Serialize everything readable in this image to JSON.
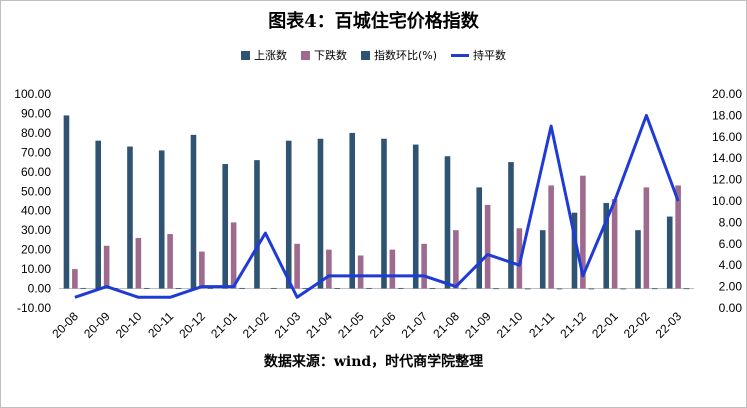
{
  "chart_data": {
    "type": "bar",
    "title": "图表4：百城住宅价格指数",
    "categories": [
      "20-08",
      "20-09",
      "20-10",
      "20-11",
      "20-12",
      "21-01",
      "21-02",
      "21-03",
      "21-04",
      "21-05",
      "21-06",
      "21-07",
      "21-08",
      "21-09",
      "21-10",
      "21-11",
      "21-12",
      "22-01",
      "22-02",
      "22-03"
    ],
    "series": [
      {
        "name": "上涨数",
        "kind": "bar",
        "axis": "left",
        "color": "#2f5373",
        "values": [
          89,
          76,
          73,
          71,
          79,
          64,
          66,
          76,
          77,
          80,
          77,
          74,
          68,
          52,
          65,
          30,
          39,
          44,
          30,
          37
        ]
      },
      {
        "name": "下跌数",
        "kind": "bar",
        "axis": "left",
        "color": "#9e6b8f",
        "values": [
          10,
          22,
          26,
          28,
          19,
          34,
          0,
          23,
          20,
          17,
          20,
          23,
          30,
          43,
          31,
          53,
          58,
          46,
          52,
          53
        ]
      },
      {
        "name": "指数环比(%)",
        "kind": "bar",
        "axis": "left",
        "color": "#2f5373",
        "values": [
          0.3,
          0.3,
          0.3,
          0.2,
          0.3,
          0.3,
          0.3,
          0.3,
          0.2,
          0.3,
          0.3,
          0.2,
          0.1,
          0.1,
          -0.04,
          -0.1,
          -0.01,
          -0.02,
          0.1,
          0.1
        ]
      },
      {
        "name": "持平数",
        "kind": "line",
        "axis": "right",
        "color": "#1f3bd6",
        "values": [
          1,
          2,
          1,
          1,
          2,
          2,
          7,
          1,
          3,
          3,
          3,
          3,
          2,
          5,
          4,
          17,
          3,
          10,
          18,
          10
        ]
      }
    ],
    "ylim_left": [
      -10,
      100
    ],
    "yticks_left": [
      "-10.00",
      "0.00",
      "10.00",
      "20.00",
      "30.00",
      "40.00",
      "50.00",
      "60.00",
      "70.00",
      "80.00",
      "90.00",
      "100.00"
    ],
    "ylim_right": [
      0,
      20
    ],
    "yticks_right": [
      "0.00",
      "2.00",
      "4.00",
      "6.00",
      "8.00",
      "10.00",
      "12.00",
      "14.00",
      "16.00",
      "18.00",
      "20.00"
    ],
    "legend_position": "top",
    "grid": false
  },
  "source_note": "数据来源：wind，时代商学院整理"
}
